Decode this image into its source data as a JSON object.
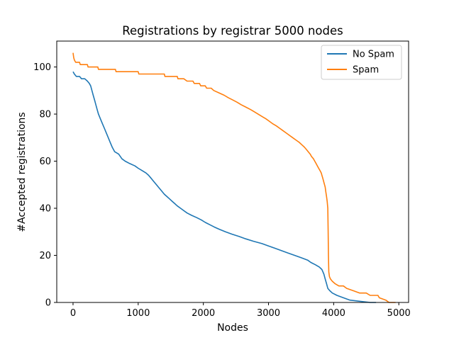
{
  "chart_data": {
    "type": "line",
    "title": "Registrations by registrar 5000 nodes",
    "xlabel": "Nodes",
    "ylabel": "#Accepted registrations",
    "xlim": [
      -250,
      5150
    ],
    "ylim": [
      0,
      111
    ],
    "xticks": [
      0,
      1000,
      2000,
      3000,
      4000,
      5000
    ],
    "yticks": [
      0,
      20,
      40,
      60,
      80,
      100
    ],
    "grid": false,
    "legend_position": "top-right",
    "series": [
      {
        "name": "No Spam",
        "color": "#1f77b4",
        "points": [
          [
            0,
            98
          ],
          [
            20,
            97
          ],
          [
            50,
            96
          ],
          [
            100,
            96
          ],
          [
            130,
            95
          ],
          [
            180,
            95
          ],
          [
            220,
            94
          ],
          [
            250,
            93
          ],
          [
            270,
            92
          ],
          [
            290,
            90
          ],
          [
            310,
            88
          ],
          [
            330,
            86
          ],
          [
            350,
            84
          ],
          [
            370,
            82
          ],
          [
            390,
            80
          ],
          [
            420,
            78
          ],
          [
            450,
            76
          ],
          [
            480,
            74
          ],
          [
            510,
            72
          ],
          [
            540,
            70
          ],
          [
            570,
            68
          ],
          [
            600,
            66
          ],
          [
            640,
            64
          ],
          [
            700,
            63
          ],
          [
            750,
            61
          ],
          [
            800,
            60
          ],
          [
            870,
            59
          ],
          [
            950,
            58
          ],
          [
            1000,
            57
          ],
          [
            1060,
            56
          ],
          [
            1120,
            55
          ],
          [
            1160,
            54
          ],
          [
            1190,
            53
          ],
          [
            1220,
            52
          ],
          [
            1250,
            51
          ],
          [
            1280,
            50
          ],
          [
            1310,
            49
          ],
          [
            1340,
            48
          ],
          [
            1370,
            47
          ],
          [
            1400,
            46
          ],
          [
            1440,
            45
          ],
          [
            1480,
            44
          ],
          [
            1520,
            43
          ],
          [
            1560,
            42
          ],
          [
            1600,
            41
          ],
          [
            1650,
            40
          ],
          [
            1700,
            39
          ],
          [
            1750,
            38
          ],
          [
            1820,
            37
          ],
          [
            1900,
            36
          ],
          [
            1970,
            35
          ],
          [
            2030,
            34
          ],
          [
            2100,
            33
          ],
          [
            2170,
            32
          ],
          [
            2250,
            31
          ],
          [
            2340,
            30
          ],
          [
            2440,
            29
          ],
          [
            2550,
            28
          ],
          [
            2650,
            27
          ],
          [
            2770,
            26
          ],
          [
            2900,
            25
          ],
          [
            3000,
            24
          ],
          [
            3100,
            23
          ],
          [
            3200,
            22
          ],
          [
            3300,
            21
          ],
          [
            3400,
            20
          ],
          [
            3500,
            19
          ],
          [
            3600,
            18
          ],
          [
            3650,
            17
          ],
          [
            3720,
            16
          ],
          [
            3780,
            15
          ],
          [
            3820,
            14
          ],
          [
            3850,
            12
          ],
          [
            3870,
            10
          ],
          [
            3890,
            8
          ],
          [
            3910,
            6
          ],
          [
            3940,
            5
          ],
          [
            3980,
            4
          ],
          [
            4050,
            3
          ],
          [
            4150,
            2
          ],
          [
            4250,
            1
          ],
          [
            4560,
            0
          ],
          [
            4650,
            0
          ]
        ]
      },
      {
        "name": "Spam",
        "color": "#ff7f0e",
        "points": [
          [
            0,
            106
          ],
          [
            10,
            104
          ],
          [
            20,
            103
          ],
          [
            40,
            102
          ],
          [
            100,
            102
          ],
          [
            110,
            101
          ],
          [
            220,
            101
          ],
          [
            230,
            100
          ],
          [
            380,
            100
          ],
          [
            390,
            99
          ],
          [
            650,
            99
          ],
          [
            660,
            98
          ],
          [
            1000,
            98
          ],
          [
            1010,
            97
          ],
          [
            1400,
            97
          ],
          [
            1410,
            96
          ],
          [
            1600,
            96
          ],
          [
            1610,
            95
          ],
          [
            1700,
            95
          ],
          [
            1750,
            94
          ],
          [
            1840,
            94
          ],
          [
            1860,
            93
          ],
          [
            1940,
            93
          ],
          [
            1960,
            92
          ],
          [
            2030,
            92
          ],
          [
            2050,
            91
          ],
          [
            2120,
            91
          ],
          [
            2160,
            90
          ],
          [
            2240,
            89
          ],
          [
            2320,
            88
          ],
          [
            2380,
            87
          ],
          [
            2450,
            86
          ],
          [
            2520,
            85
          ],
          [
            2580,
            84
          ],
          [
            2650,
            83
          ],
          [
            2720,
            82
          ],
          [
            2780,
            81
          ],
          [
            2840,
            80
          ],
          [
            2900,
            79
          ],
          [
            2960,
            78
          ],
          [
            3010,
            77
          ],
          [
            3060,
            76
          ],
          [
            3120,
            75
          ],
          [
            3170,
            74
          ],
          [
            3220,
            73
          ],
          [
            3270,
            72
          ],
          [
            3320,
            71
          ],
          [
            3370,
            70
          ],
          [
            3420,
            69
          ],
          [
            3470,
            68
          ],
          [
            3510,
            67
          ],
          [
            3550,
            66
          ],
          [
            3580,
            65
          ],
          [
            3610,
            64
          ],
          [
            3640,
            63
          ],
          [
            3660,
            62
          ],
          [
            3690,
            61
          ],
          [
            3710,
            60
          ],
          [
            3730,
            59
          ],
          [
            3750,
            58
          ],
          [
            3770,
            57
          ],
          [
            3790,
            56
          ],
          [
            3810,
            55
          ],
          [
            3820,
            54
          ],
          [
            3830,
            53
          ],
          [
            3840,
            52
          ],
          [
            3850,
            51
          ],
          [
            3860,
            50
          ],
          [
            3870,
            49
          ],
          [
            3880,
            47
          ],
          [
            3890,
            45
          ],
          [
            3900,
            43
          ],
          [
            3910,
            40
          ],
          [
            3915,
            30
          ],
          [
            3920,
            20
          ],
          [
            3925,
            13
          ],
          [
            3935,
            11
          ],
          [
            3950,
            10
          ],
          [
            3980,
            9
          ],
          [
            4020,
            8
          ],
          [
            4080,
            7
          ],
          [
            4150,
            7
          ],
          [
            4200,
            6
          ],
          [
            4300,
            5
          ],
          [
            4400,
            4
          ],
          [
            4500,
            4
          ],
          [
            4560,
            3
          ],
          [
            4680,
            3
          ],
          [
            4700,
            2
          ],
          [
            4800,
            1
          ],
          [
            4850,
            0
          ],
          [
            4950,
            0
          ]
        ]
      }
    ]
  }
}
